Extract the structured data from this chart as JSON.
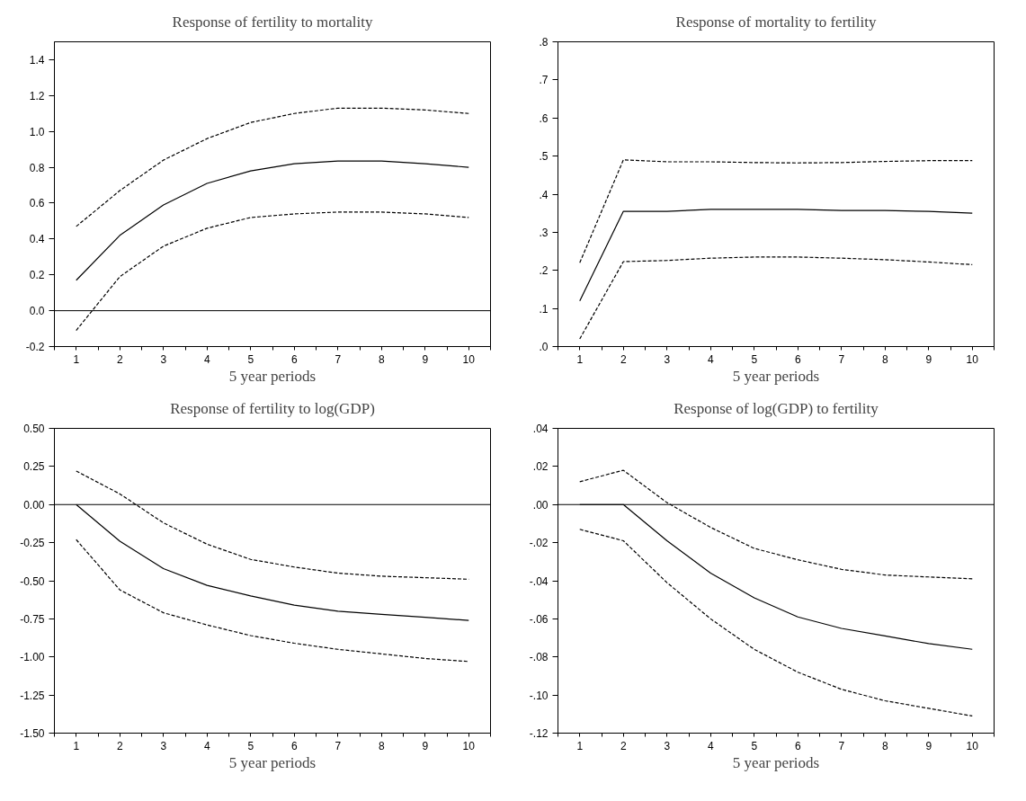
{
  "chart_data": [
    {
      "type": "line",
      "title": "Response of fertility to mortality",
      "xlabel": "5 year periods",
      "categories": [
        "1",
        "2",
        "3",
        "4",
        "5",
        "6",
        "7",
        "8",
        "9",
        "10"
      ],
      "ylim": [
        -0.2,
        1.5
      ],
      "yticks": [
        {
          "value": -0.2,
          "label": "-0.2"
        },
        {
          "value": 0,
          "label": "0.0"
        },
        {
          "value": 0.2,
          "label": "0.2"
        },
        {
          "value": 0.4,
          "label": "0.4"
        },
        {
          "value": 0.6,
          "label": "0.6"
        },
        {
          "value": 0.8,
          "label": "0.8"
        },
        {
          "value": 1.0,
          "label": "1.0"
        },
        {
          "value": 1.2,
          "label": "1.2"
        },
        {
          "value": 1.4,
          "label": "1.4"
        }
      ],
      "grid": false,
      "ref_lines": [
        {
          "axis": "y",
          "value": 0,
          "color": "#000000"
        }
      ],
      "series": [
        {
          "color": "#000000",
          "line_style": "solid",
          "values": [
            0.17,
            0.42,
            0.59,
            0.71,
            0.78,
            0.82,
            0.835,
            0.835,
            0.82,
            0.8
          ]
        },
        {
          "color": "#000000",
          "line_style": "dashed",
          "values": [
            0.47,
            0.67,
            0.84,
            0.96,
            1.05,
            1.1,
            1.13,
            1.13,
            1.12,
            1.1
          ]
        },
        {
          "color": "#000000",
          "line_style": "dashed",
          "values": [
            -0.11,
            0.19,
            0.36,
            0.46,
            0.52,
            0.54,
            0.55,
            0.55,
            0.54,
            0.52
          ]
        }
      ]
    },
    {
      "type": "line",
      "title": "Response of mortality to fertility",
      "xlabel": "5 year periods",
      "categories": [
        "1",
        "2",
        "3",
        "4",
        "5",
        "6",
        "7",
        "8",
        "9",
        "10"
      ],
      "ylim": [
        0,
        0.8
      ],
      "yticks": [
        {
          "value": 0,
          "label": ".0"
        },
        {
          "value": 0.1,
          "label": ".1"
        },
        {
          "value": 0.2,
          "label": ".2"
        },
        {
          "value": 0.3,
          "label": ".3"
        },
        {
          "value": 0.4,
          "label": ".4"
        },
        {
          "value": 0.5,
          "label": ".5"
        },
        {
          "value": 0.6,
          "label": ".6"
        },
        {
          "value": 0.7,
          "label": ".7"
        },
        {
          "value": 0.8,
          "label": ".8"
        }
      ],
      "grid": false,
      "series": [
        {
          "color": "#000000",
          "line_style": "solid",
          "values": [
            0.12,
            0.355,
            0.355,
            0.36,
            0.36,
            0.36,
            0.357,
            0.357,
            0.355,
            0.35
          ]
        },
        {
          "color": "#000000",
          "line_style": "dashed",
          "values": [
            0.22,
            0.49,
            0.485,
            0.485,
            0.483,
            0.482,
            0.483,
            0.486,
            0.488,
            0.488
          ]
        },
        {
          "color": "#000000",
          "line_style": "dashed",
          "values": [
            0.02,
            0.223,
            0.226,
            0.232,
            0.235,
            0.235,
            0.232,
            0.228,
            0.222,
            0.215
          ]
        }
      ]
    },
    {
      "type": "line",
      "title": "Response of fertility to log(GDP)",
      "xlabel": "5 year periods",
      "categories": [
        "1",
        "2",
        "3",
        "4",
        "5",
        "6",
        "7",
        "8",
        "9",
        "10"
      ],
      "ylim": [
        -1.5,
        0.5
      ],
      "yticks": [
        {
          "value": -1.5,
          "label": "-1.50"
        },
        {
          "value": -1.25,
          "label": "-1.25"
        },
        {
          "value": -1.0,
          "label": "-1.00"
        },
        {
          "value": -0.75,
          "label": "-0.75"
        },
        {
          "value": -0.5,
          "label": "-0.50"
        },
        {
          "value": -0.25,
          "label": "-0.25"
        },
        {
          "value": 0,
          "label": "0.00"
        },
        {
          "value": 0.25,
          "label": "0.25"
        },
        {
          "value": 0.5,
          "label": "0.50"
        }
      ],
      "grid": false,
      "ref_lines": [
        {
          "axis": "y",
          "value": 0,
          "color": "#000000"
        }
      ],
      "series": [
        {
          "color": "#000000",
          "line_style": "solid",
          "values": [
            0,
            -0.24,
            -0.42,
            -0.53,
            -0.6,
            -0.66,
            -0.7,
            -0.72,
            -0.74,
            -0.76
          ]
        },
        {
          "color": "#000000",
          "line_style": "dashed",
          "values": [
            0.22,
            0.07,
            -0.12,
            -0.26,
            -0.36,
            -0.41,
            -0.45,
            -0.47,
            -0.48,
            -0.49
          ]
        },
        {
          "color": "#000000",
          "line_style": "dashed",
          "values": [
            -0.23,
            -0.56,
            -0.71,
            -0.79,
            -0.86,
            -0.91,
            -0.95,
            -0.98,
            -1.01,
            -1.03
          ]
        }
      ]
    },
    {
      "type": "line",
      "title": "Response of log(GDP) to fertility",
      "xlabel": "5 year periods",
      "categories": [
        "1",
        "2",
        "3",
        "4",
        "5",
        "6",
        "7",
        "8",
        "9",
        "10"
      ],
      "ylim": [
        -0.12,
        0.04
      ],
      "yticks": [
        {
          "value": -0.12,
          "label": "-.12"
        },
        {
          "value": -0.1,
          "label": "-.10"
        },
        {
          "value": -0.08,
          "label": "-.08"
        },
        {
          "value": -0.06,
          "label": "-.06"
        },
        {
          "value": -0.04,
          "label": "-.04"
        },
        {
          "value": -0.02,
          "label": "-.02"
        },
        {
          "value": 0,
          "label": ".00"
        },
        {
          "value": 0.02,
          "label": ".02"
        },
        {
          "value": 0.04,
          "label": ".04"
        }
      ],
      "grid": false,
      "ref_lines": [
        {
          "axis": "y",
          "value": 0,
          "color": "#000000"
        }
      ],
      "series": [
        {
          "color": "#000000",
          "line_style": "solid",
          "values": [
            0,
            0,
            -0.019,
            -0.036,
            -0.049,
            -0.059,
            -0.065,
            -0.069,
            -0.073,
            -0.076
          ]
        },
        {
          "color": "#000000",
          "line_style": "dashed",
          "values": [
            0.012,
            0.018,
            0.001,
            -0.012,
            -0.023,
            -0.029,
            -0.034,
            -0.037,
            -0.038,
            -0.039
          ]
        },
        {
          "color": "#000000",
          "line_style": "dashed",
          "values": [
            -0.013,
            -0.019,
            -0.041,
            -0.06,
            -0.076,
            -0.088,
            -0.097,
            -0.103,
            -0.107,
            -0.111
          ]
        }
      ]
    }
  ]
}
